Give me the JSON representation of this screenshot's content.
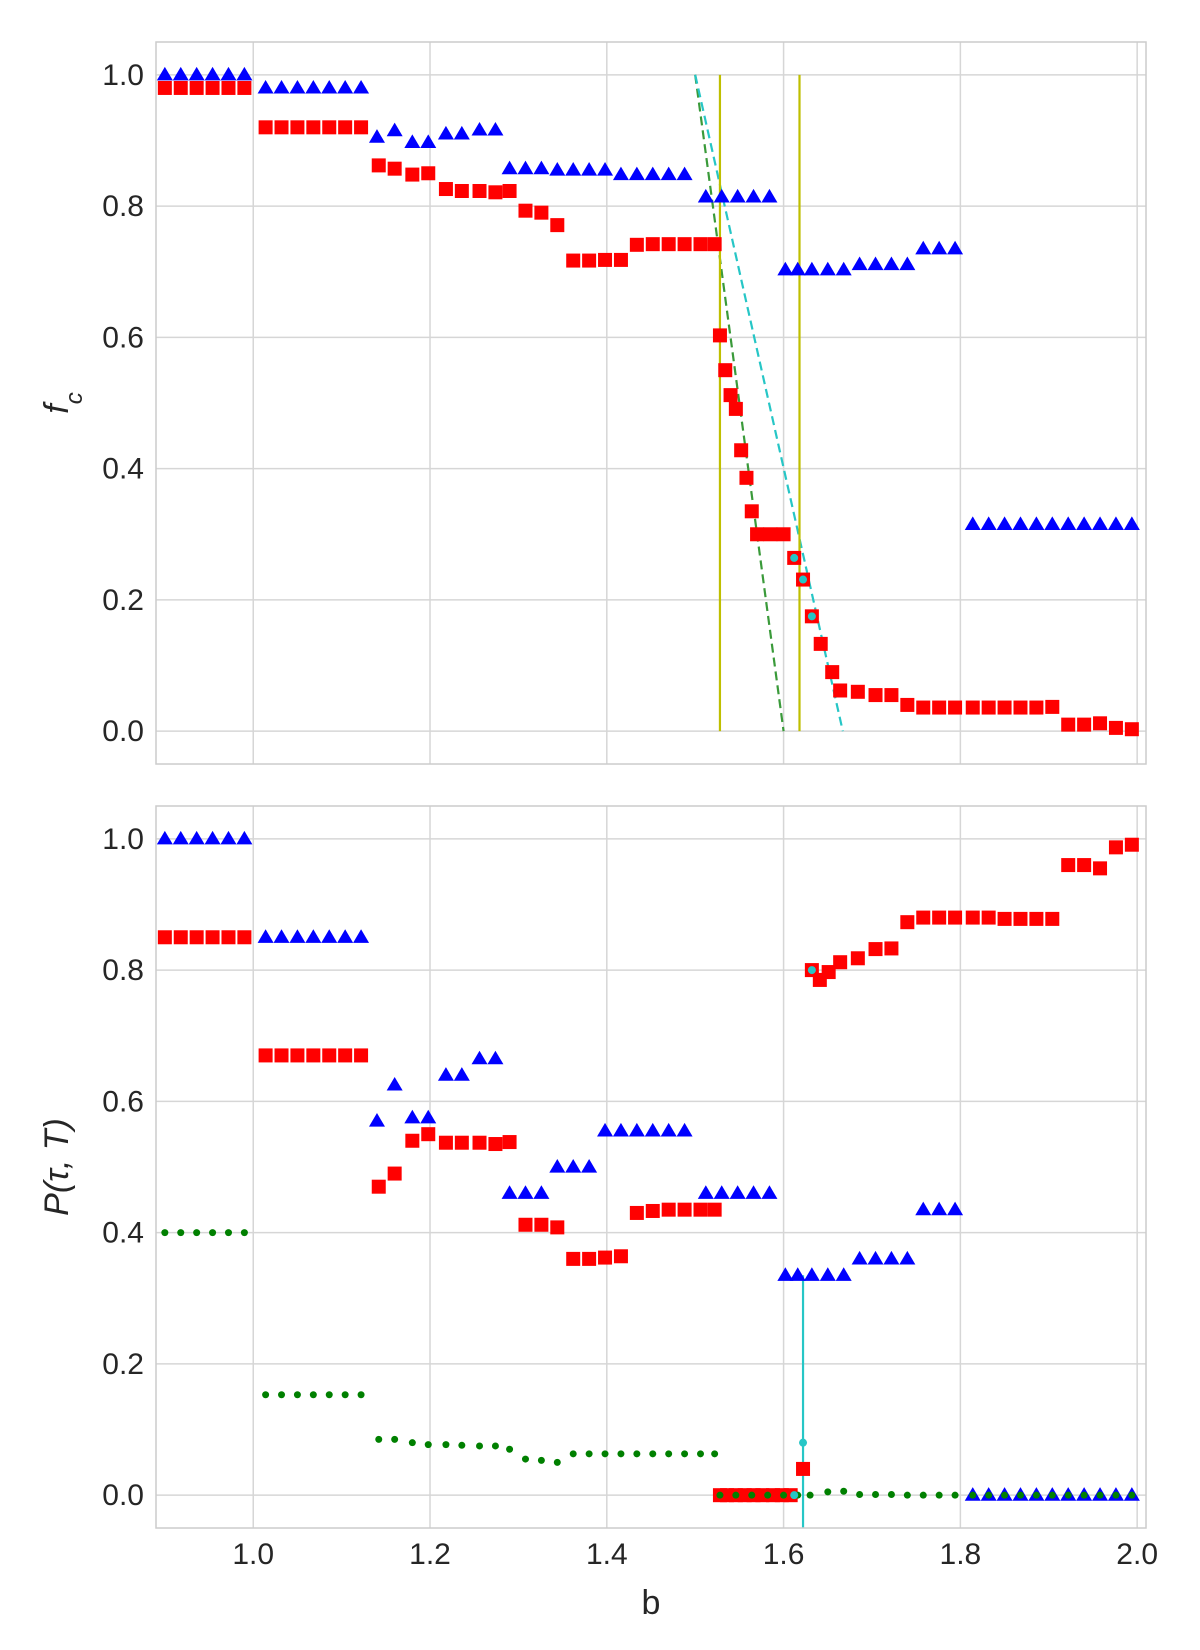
{
  "chart_data": [
    {
      "type": "scatter",
      "panel": "top",
      "title": "",
      "xlabel": "",
      "ylabel": "f_c",
      "xlim": [
        0.89,
        2.01
      ],
      "ylim": [
        -0.05,
        1.05
      ],
      "xticks": [
        1.0,
        1.2,
        1.4,
        1.6,
        1.8,
        2.0
      ],
      "yticks": [
        0.0,
        0.2,
        0.4,
        0.6,
        0.8,
        1.0
      ],
      "xtick_labels": [],
      "ytick_labels": [
        "0.0",
        "0.2",
        "0.4",
        "0.6",
        "0.8",
        "1.0"
      ],
      "grid": true,
      "colors": {
        "triangles": "#0000ff",
        "squares": "#ff0000",
        "cyan": "#26c6c6",
        "green_dashed": "#3a9a3a",
        "olive": "#bfbf00"
      },
      "series": [
        {
          "marker": "triangle",
          "color": "#0000ff",
          "x": [
            0.9,
            0.918,
            0.936,
            0.954,
            0.972,
            0.99,
            1.014,
            1.032,
            1.05,
            1.068,
            1.086,
            1.104,
            1.122,
            1.14,
            1.16,
            1.18,
            1.198,
            1.218,
            1.236,
            1.256,
            1.274,
            1.29,
            1.308,
            1.326,
            1.344,
            1.362,
            1.38,
            1.398,
            1.416,
            1.434,
            1.452,
            1.47,
            1.488,
            1.512,
            1.53,
            1.548,
            1.566,
            1.584,
            1.602,
            1.616,
            1.632,
            1.65,
            1.668,
            1.686,
            1.704,
            1.722,
            1.74,
            1.758,
            1.776,
            1.794,
            1.814,
            1.832,
            1.85,
            1.868,
            1.886,
            1.904,
            1.922,
            1.94,
            1.958,
            1.976,
            1.994
          ],
          "y": [
            1.0,
            1.0,
            1.0,
            1.0,
            1.0,
            1.0,
            0.98,
            0.98,
            0.98,
            0.98,
            0.98,
            0.98,
            0.98,
            0.905,
            0.915,
            0.897,
            0.897,
            0.91,
            0.91,
            0.916,
            0.916,
            0.857,
            0.857,
            0.857,
            0.855,
            0.855,
            0.855,
            0.855,
            0.848,
            0.848,
            0.848,
            0.848,
            0.848,
            0.814,
            0.814,
            0.814,
            0.814,
            0.814,
            0.703,
            0.703,
            0.703,
            0.703,
            0.703,
            0.711,
            0.711,
            0.711,
            0.711,
            0.735,
            0.735,
            0.735,
            0.315,
            0.315,
            0.315,
            0.315,
            0.315,
            0.315,
            0.315,
            0.315,
            0.315,
            0.315,
            0.315
          ]
        },
        {
          "marker": "square",
          "color": "#ff0000",
          "x": [
            0.9,
            0.918,
            0.936,
            0.954,
            0.972,
            0.99,
            1.014,
            1.032,
            1.05,
            1.068,
            1.086,
            1.104,
            1.122,
            1.142,
            1.16,
            1.18,
            1.198,
            1.218,
            1.236,
            1.256,
            1.274,
            1.29,
            1.308,
            1.326,
            1.344,
            1.362,
            1.38,
            1.398,
            1.416,
            1.434,
            1.452,
            1.47,
            1.488,
            1.506,
            1.522,
            1.528,
            1.534,
            1.54,
            1.546,
            1.552,
            1.558,
            1.564,
            1.57,
            1.585,
            1.6,
            1.612,
            1.622,
            1.632,
            1.642,
            1.655,
            1.664,
            1.684,
            1.704,
            1.722,
            1.74,
            1.758,
            1.776,
            1.794,
            1.814,
            1.832,
            1.85,
            1.868,
            1.886,
            1.904,
            1.922,
            1.94,
            1.958,
            1.976,
            1.994
          ],
          "y": [
            0.98,
            0.98,
            0.98,
            0.98,
            0.98,
            0.98,
            0.92,
            0.92,
            0.92,
            0.92,
            0.92,
            0.92,
            0.92,
            0.862,
            0.857,
            0.848,
            0.85,
            0.826,
            0.823,
            0.823,
            0.821,
            0.823,
            0.793,
            0.79,
            0.771,
            0.717,
            0.717,
            0.718,
            0.718,
            0.741,
            0.742,
            0.742,
            0.742,
            0.742,
            0.742,
            0.603,
            0.55,
            0.512,
            0.491,
            0.428,
            0.386,
            0.335,
            0.3,
            0.3,
            0.3,
            0.264,
            0.231,
            0.175,
            0.133,
            0.09,
            0.062,
            0.06,
            0.055,
            0.055,
            0.04,
            0.036,
            0.036,
            0.036,
            0.036,
            0.036,
            0.036,
            0.036,
            0.036,
            0.037,
            0.01,
            0.01,
            0.012,
            0.005,
            0.003
          ]
        },
        {
          "marker": "dot",
          "color": "#26c6c6",
          "x": [
            1.612,
            1.622,
            1.632
          ],
          "y": [
            0.264,
            0.231,
            0.175
          ]
        }
      ],
      "lines": [
        {
          "style": "dashed",
          "color": "#3a9a3a",
          "x": [
            1.5,
            1.6
          ],
          "y": [
            1.0,
            0.0
          ]
        },
        {
          "style": "dashed",
          "color": "#26c6c6",
          "x": [
            1.5,
            1.667
          ],
          "y": [
            1.0,
            0.0
          ]
        },
        {
          "style": "solid-vertical",
          "color": "#bfbf00",
          "x": [
            1.528,
            1.528
          ],
          "y": [
            0.0,
            1.0
          ]
        },
        {
          "style": "solid-vertical",
          "color": "#bfbf00",
          "x": [
            1.618,
            1.618
          ],
          "y": [
            0.0,
            1.0
          ]
        }
      ]
    },
    {
      "type": "scatter",
      "panel": "bottom",
      "title": "",
      "xlabel": "b",
      "ylabel": "P(τ, T)",
      "xlim": [
        0.89,
        2.01
      ],
      "ylim": [
        -0.05,
        1.05
      ],
      "xticks": [
        1.0,
        1.2,
        1.4,
        1.6,
        1.8,
        2.0
      ],
      "yticks": [
        0.0,
        0.2,
        0.4,
        0.6,
        0.8,
        1.0
      ],
      "xtick_labels": [
        "1.0",
        "1.2",
        "1.4",
        "1.6",
        "1.8",
        "2.0"
      ],
      "ytick_labels": [
        "0.0",
        "0.2",
        "0.4",
        "0.6",
        "0.8",
        "1.0"
      ],
      "grid": true,
      "colors": {
        "triangles": "#0000ff",
        "squares": "#ff0000",
        "dots": "#008000",
        "cyan": "#26c6c6"
      },
      "series": [
        {
          "marker": "triangle",
          "color": "#0000ff",
          "x": [
            0.9,
            0.918,
            0.936,
            0.954,
            0.972,
            0.99,
            1.014,
            1.032,
            1.05,
            1.068,
            1.086,
            1.104,
            1.122,
            1.14,
            1.16,
            1.18,
            1.198,
            1.218,
            1.236,
            1.256,
            1.274,
            1.29,
            1.308,
            1.326,
            1.344,
            1.362,
            1.38,
            1.398,
            1.416,
            1.434,
            1.452,
            1.47,
            1.488,
            1.512,
            1.53,
            1.548,
            1.566,
            1.584,
            1.602,
            1.616,
            1.632,
            1.65,
            1.668,
            1.686,
            1.704,
            1.722,
            1.74,
            1.758,
            1.776,
            1.794,
            1.814,
            1.832,
            1.85,
            1.868,
            1.886,
            1.904,
            1.922,
            1.94,
            1.958,
            1.976,
            1.994
          ],
          "y": [
            1.0,
            1.0,
            1.0,
            1.0,
            1.0,
            1.0,
            0.85,
            0.85,
            0.85,
            0.85,
            0.85,
            0.85,
            0.85,
            0.57,
            0.625,
            0.575,
            0.575,
            0.64,
            0.64,
            0.665,
            0.665,
            0.46,
            0.46,
            0.46,
            0.5,
            0.5,
            0.5,
            0.555,
            0.555,
            0.555,
            0.555,
            0.555,
            0.555,
            0.46,
            0.46,
            0.46,
            0.46,
            0.46,
            0.335,
            0.335,
            0.335,
            0.335,
            0.335,
            0.36,
            0.36,
            0.36,
            0.36,
            0.435,
            0.435,
            0.435,
            0.0,
            0.0,
            0.0,
            0.0,
            0.0,
            0.0,
            0.0,
            0.0,
            0.0,
            0.0,
            0.0
          ]
        },
        {
          "marker": "square",
          "color": "#ff0000",
          "x": [
            0.9,
            0.918,
            0.936,
            0.954,
            0.972,
            0.99,
            1.014,
            1.032,
            1.05,
            1.068,
            1.086,
            1.104,
            1.122,
            1.142,
            1.16,
            1.18,
            1.198,
            1.218,
            1.236,
            1.256,
            1.274,
            1.29,
            1.308,
            1.326,
            1.344,
            1.362,
            1.38,
            1.398,
            1.416,
            1.434,
            1.452,
            1.47,
            1.488,
            1.506,
            1.522,
            1.528,
            1.536,
            1.546,
            1.556,
            1.566,
            1.576,
            1.588,
            1.598,
            1.608,
            1.622,
            1.632,
            1.641,
            1.651,
            1.664,
            1.684,
            1.704,
            1.722,
            1.74,
            1.758,
            1.776,
            1.794,
            1.814,
            1.832,
            1.85,
            1.868,
            1.886,
            1.904,
            1.922,
            1.94,
            1.958,
            1.976,
            1.994
          ],
          "y": [
            0.85,
            0.85,
            0.85,
            0.85,
            0.85,
            0.85,
            0.67,
            0.67,
            0.67,
            0.67,
            0.67,
            0.67,
            0.67,
            0.47,
            0.49,
            0.54,
            0.55,
            0.537,
            0.537,
            0.537,
            0.535,
            0.538,
            0.412,
            0.412,
            0.408,
            0.36,
            0.36,
            0.362,
            0.364,
            0.43,
            0.433,
            0.435,
            0.435,
            0.435,
            0.435,
            0.0,
            0.0,
            0.0,
            0.0,
            0.0,
            0.0,
            0.0,
            0.0,
            0.0,
            0.04,
            0.8,
            0.785,
            0.797,
            0.812,
            0.818,
            0.832,
            0.833,
            0.873,
            0.88,
            0.88,
            0.88,
            0.88,
            0.88,
            0.878,
            0.878,
            0.878,
            0.878,
            0.96,
            0.96,
            0.955,
            0.987,
            0.991
          ]
        },
        {
          "marker": "dot",
          "color": "#008000",
          "x": [
            0.9,
            0.918,
            0.936,
            0.954,
            0.972,
            0.99,
            1.014,
            1.032,
            1.05,
            1.068,
            1.086,
            1.104,
            1.122,
            1.142,
            1.16,
            1.18,
            1.198,
            1.218,
            1.236,
            1.256,
            1.274,
            1.29,
            1.308,
            1.326,
            1.344,
            1.362,
            1.38,
            1.398,
            1.416,
            1.434,
            1.452,
            1.47,
            1.488,
            1.506,
            1.522,
            1.528,
            1.546,
            1.564,
            1.582,
            1.6,
            1.616,
            1.63,
            1.65,
            1.668,
            1.686,
            1.704,
            1.722,
            1.74,
            1.758,
            1.776,
            1.794,
            1.814,
            1.832,
            1.85,
            1.868,
            1.886,
            1.904,
            1.922,
            1.94,
            1.958,
            1.976,
            1.994
          ],
          "y": [
            0.4,
            0.4,
            0.4,
            0.4,
            0.4,
            0.4,
            0.153,
            0.153,
            0.153,
            0.153,
            0.153,
            0.153,
            0.153,
            0.085,
            0.085,
            0.08,
            0.077,
            0.077,
            0.076,
            0.075,
            0.075,
            0.07,
            0.055,
            0.053,
            0.05,
            0.063,
            0.063,
            0.063,
            0.063,
            0.063,
            0.063,
            0.063,
            0.063,
            0.063,
            0.063,
            0.0,
            0.0,
            0.0,
            0.0,
            0.0,
            0.0,
            0.0,
            0.005,
            0.006,
            0.001,
            0.001,
            0.001,
            0.0,
            0.0,
            0.0,
            0.0,
            0.0,
            0.0,
            0.0,
            0.0,
            0.0,
            0.0,
            0.0,
            0.0,
            0.0,
            0.0,
            0.0
          ]
        },
        {
          "marker": "dot",
          "color": "#26c6c6",
          "x": [
            1.612,
            1.622,
            1.632
          ],
          "y": [
            0.0,
            0.08,
            0.8
          ]
        }
      ],
      "lines": [
        {
          "style": "solid-vertical",
          "color": "#26c6c6",
          "x": [
            1.622,
            1.622
          ],
          "y": [
            -0.05,
            0.335
          ]
        }
      ]
    }
  ]
}
